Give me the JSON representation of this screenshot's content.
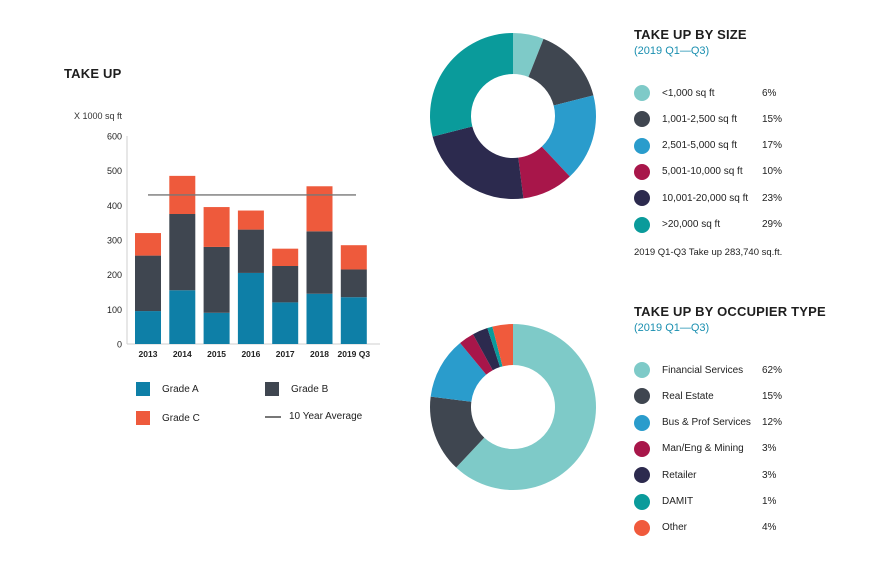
{
  "colors": {
    "grade_a": "#0e7fa7",
    "grade_b": "#3f4650",
    "grade_c": "#ee5a3c",
    "avg_line": "#777777",
    "sub_title": "#1a8fb0"
  },
  "take_up": {
    "title": "TAKE UP",
    "unit": "X 1000 sq ft",
    "legend": {
      "grade_a": "Grade A",
      "grade_b": "Grade B",
      "grade_c": "Grade C",
      "avg": "10 Year Average"
    }
  },
  "size": {
    "title": "TAKE UP BY SIZE",
    "subtitle": "(2019 Q1—Q3)",
    "note": "2019 Q1-Q3 Take up 283,740 sq.ft.",
    "items": [
      {
        "label": "<1,000 sq ft",
        "pct": "6%",
        "color": "#7ecac8"
      },
      {
        "label": "1,001-2,500 sq ft",
        "pct": "15%",
        "color": "#3f4650"
      },
      {
        "label": "2,501-5,000 sq ft",
        "pct": "17%",
        "color": "#2a9ccc"
      },
      {
        "label": "5,001-10,000 sq ft",
        "pct": "10%",
        "color": "#a8164a"
      },
      {
        "label": "10,001-20,000 sq ft",
        "pct": "23%",
        "color": "#2c2a4e"
      },
      {
        "label": ">20,000 sq ft",
        "pct": "29%",
        "color": "#0a9b9b"
      }
    ]
  },
  "occupier": {
    "title": "TAKE UP BY OCCUPIER TYPE",
    "subtitle": "(2019 Q1—Q3)",
    "items": [
      {
        "label": "Financial Services",
        "pct": "62%",
        "color": "#7ecac8"
      },
      {
        "label": "Real Estate",
        "pct": "15%",
        "color": "#3f4650"
      },
      {
        "label": "Bus & Prof Services",
        "pct": "12%",
        "color": "#2a9ccc"
      },
      {
        "label": "Man/Eng & Mining",
        "pct": "3%",
        "color": "#a8164a"
      },
      {
        "label": "Retailer",
        "pct": "3%",
        "color": "#2c2a4e"
      },
      {
        "label": "DAMIT",
        "pct": "1%",
        "color": "#0a9b9b"
      },
      {
        "label": "Other",
        "pct": "4%",
        "color": "#f05a3c"
      }
    ]
  },
  "chart_data": [
    {
      "type": "bar",
      "title": "TAKE UP",
      "ylabel": "X 1000 sq ft",
      "categories": [
        "2013",
        "2014",
        "2015",
        "2016",
        "2017",
        "2018",
        "2019 Q3"
      ],
      "ylim": [
        0,
        600
      ],
      "yticks": [
        "0",
        "100",
        "200",
        "300",
        "400",
        "500",
        "600"
      ],
      "stacked": true,
      "series": [
        {
          "name": "Grade A",
          "values": [
            95,
            155,
            90,
            205,
            120,
            145,
            135
          ]
        },
        {
          "name": "Grade B",
          "values": [
            160,
            220,
            190,
            125,
            105,
            180,
            80
          ]
        },
        {
          "name": "Grade C",
          "values": [
            65,
            110,
            115,
            55,
            50,
            130,
            70
          ]
        }
      ],
      "reference_line": {
        "name": "10 Year Average",
        "value": 430
      }
    },
    {
      "type": "pie",
      "title": "TAKE UP BY SIZE",
      "categories": [
        "<1,000 sq ft",
        "1,001-2,500 sq ft",
        "2,501-5,000 sq ft",
        "5,001-10,000 sq ft",
        "10,001-20,000 sq ft",
        ">20,000 sq ft"
      ],
      "values": [
        6,
        15,
        17,
        10,
        23,
        29
      ]
    },
    {
      "type": "pie",
      "title": "TAKE UP BY OCCUPIER TYPE",
      "categories": [
        "Financial Services",
        "Real Estate",
        "Bus & Prof Services",
        "Man/Eng & Mining",
        "Retailer",
        "DAMIT",
        "Other"
      ],
      "values": [
        62,
        15,
        12,
        3,
        3,
        1,
        4
      ]
    }
  ]
}
